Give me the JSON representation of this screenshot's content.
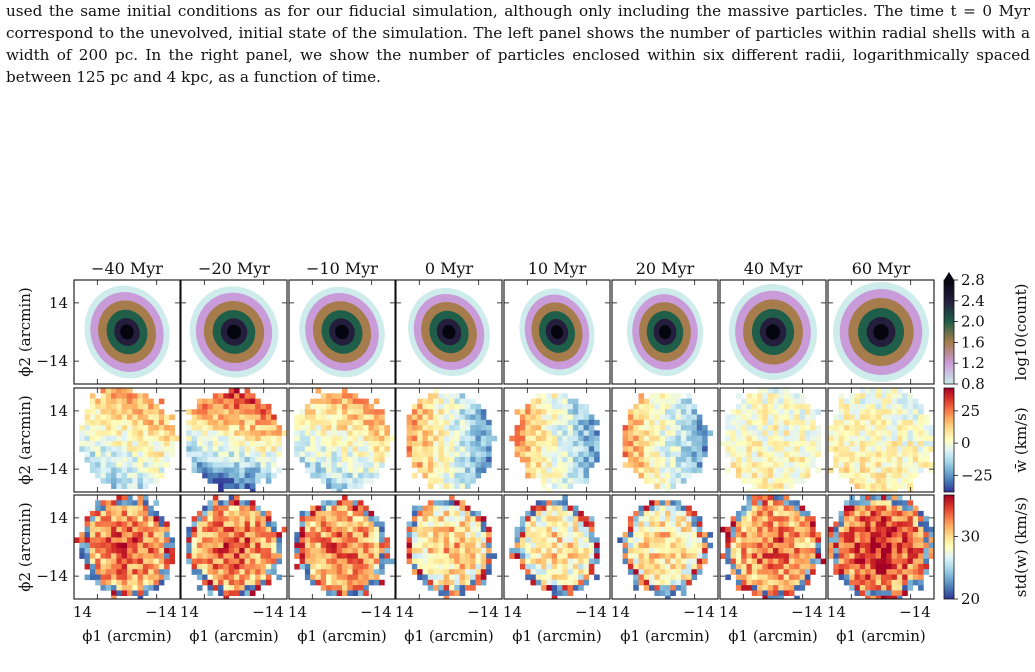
{
  "caption": {
    "text": "used the same initial conditions as for our fiducial simulation, although only including the massive particles. The time t = 0 Myr correspond to the unevolved, initial state of the simulation. The left panel shows the number of particles within radial shells with a width of 200 pc. In the right panel, we show the number of particles enclosed within six different radii, logarithmically spaced between 125 pc and 4 kpc, as a function of time."
  },
  "figure": {
    "columns": [
      "−40 Myr",
      "−20 Myr",
      "−10 Myr",
      "0 Myr",
      "10 Myr",
      "20 Myr",
      "40 Myr",
      "60 Myr"
    ],
    "x_label": "ϕ1 (arcmin)",
    "y_label": "ϕ2 (arcmin)",
    "x_ticks": [
      "14",
      "−14"
    ],
    "y_ticks": [
      "14",
      "−14"
    ],
    "rows": [
      {
        "name": "count",
        "colorbar_label": "log10(count)",
        "colorbar_ticks": [
          "2.8",
          "2.4",
          "2.0",
          "1.6",
          "1.2",
          "0.8"
        ],
        "palette": [
          "#cdeceb",
          "#c99bd8",
          "#a67c4c",
          "#1f5e48",
          "#241d3c",
          "#050510"
        ]
      },
      {
        "name": "mean_w",
        "colorbar_label": "w̄ (km/s)",
        "colorbar_ticks": [
          "25",
          "0",
          "−25"
        ],
        "palette": [
          "#313695",
          "#4575b4",
          "#74add1",
          "#abd9e9",
          "#e0f3f8",
          "#ffffbf",
          "#fee090",
          "#fdae61",
          "#f46d43",
          "#d73027",
          "#a50026"
        ]
      },
      {
        "name": "std_w",
        "colorbar_label": "std(w) (km/s)",
        "colorbar_ticks": [
          "30",
          "20"
        ],
        "palette": [
          "#313695",
          "#4575b4",
          "#74add1",
          "#abd9e9",
          "#e0f3f8",
          "#ffffbf",
          "#fee090",
          "#fdae61",
          "#f46d43",
          "#d73027",
          "#a50026"
        ]
      }
    ]
  }
}
